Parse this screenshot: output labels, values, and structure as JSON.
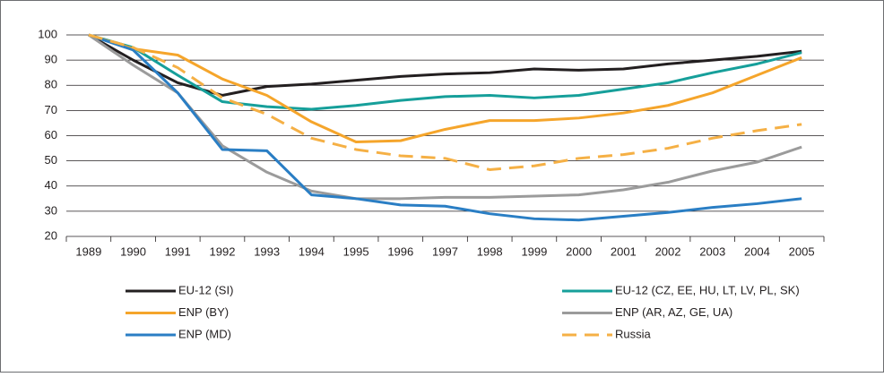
{
  "chart_data": {
    "type": "line",
    "categories": [
      "1989",
      "1990",
      "1991",
      "1992",
      "1993",
      "1994",
      "1995",
      "1996",
      "1997",
      "1998",
      "1999",
      "2000",
      "2001",
      "2002",
      "2003",
      "2004",
      "2005"
    ],
    "ylim": [
      20,
      100
    ],
    "yticks": [
      20,
      30,
      40,
      50,
      60,
      70,
      80,
      90,
      100
    ],
    "grid": true,
    "legend": "bottom",
    "series": [
      {
        "name": "EU-12 (SI)",
        "color": "#231f20",
        "dash": false,
        "values": [
          100,
          90,
          81,
          76,
          79.5,
          80.5,
          82,
          83.5,
          84.5,
          85,
          86.5,
          86,
          86.5,
          88.5,
          90,
          91.5,
          93.5
        ]
      },
      {
        "name": "EU-12 (CZ, EE, HU, LT, LV, PL, SK)",
        "color": "#169f9a",
        "dash": false,
        "values": [
          100,
          95,
          84,
          73.5,
          71.5,
          70.5,
          72,
          74,
          75.5,
          76,
          75,
          76,
          78.5,
          81,
          85,
          88.5,
          93
        ]
      },
      {
        "name": "ENP (BY)",
        "color": "#f5a52b",
        "dash": false,
        "values": [
          100,
          94.5,
          92,
          82.5,
          76,
          65.5,
          57.5,
          58,
          62.5,
          66,
          66,
          67,
          69,
          72,
          77,
          84,
          91
        ]
      },
      {
        "name": "ENP (AR, AZ, GE, UA)",
        "color": "#9b9b9b",
        "dash": false,
        "values": [
          100,
          88,
          77,
          56,
          45.5,
          38,
          35,
          35,
          35.5,
          35.5,
          36,
          36.5,
          38.5,
          41.5,
          46,
          49.5,
          55.5
        ]
      },
      {
        "name": "ENP (MD)",
        "color": "#2a7ec4",
        "dash": false,
        "values": [
          100,
          94,
          77,
          54.5,
          54,
          36.5,
          35,
          32.5,
          32,
          29,
          27,
          26.5,
          28,
          29.5,
          31.5,
          33,
          35
        ]
      },
      {
        "name": "Russia",
        "color": "#f5b045",
        "dash": true,
        "values": [
          100,
          95,
          87,
          75,
          68.5,
          59,
          54.5,
          52,
          51,
          46.5,
          48,
          51,
          52.5,
          55,
          59,
          62,
          64.5
        ]
      }
    ]
  }
}
